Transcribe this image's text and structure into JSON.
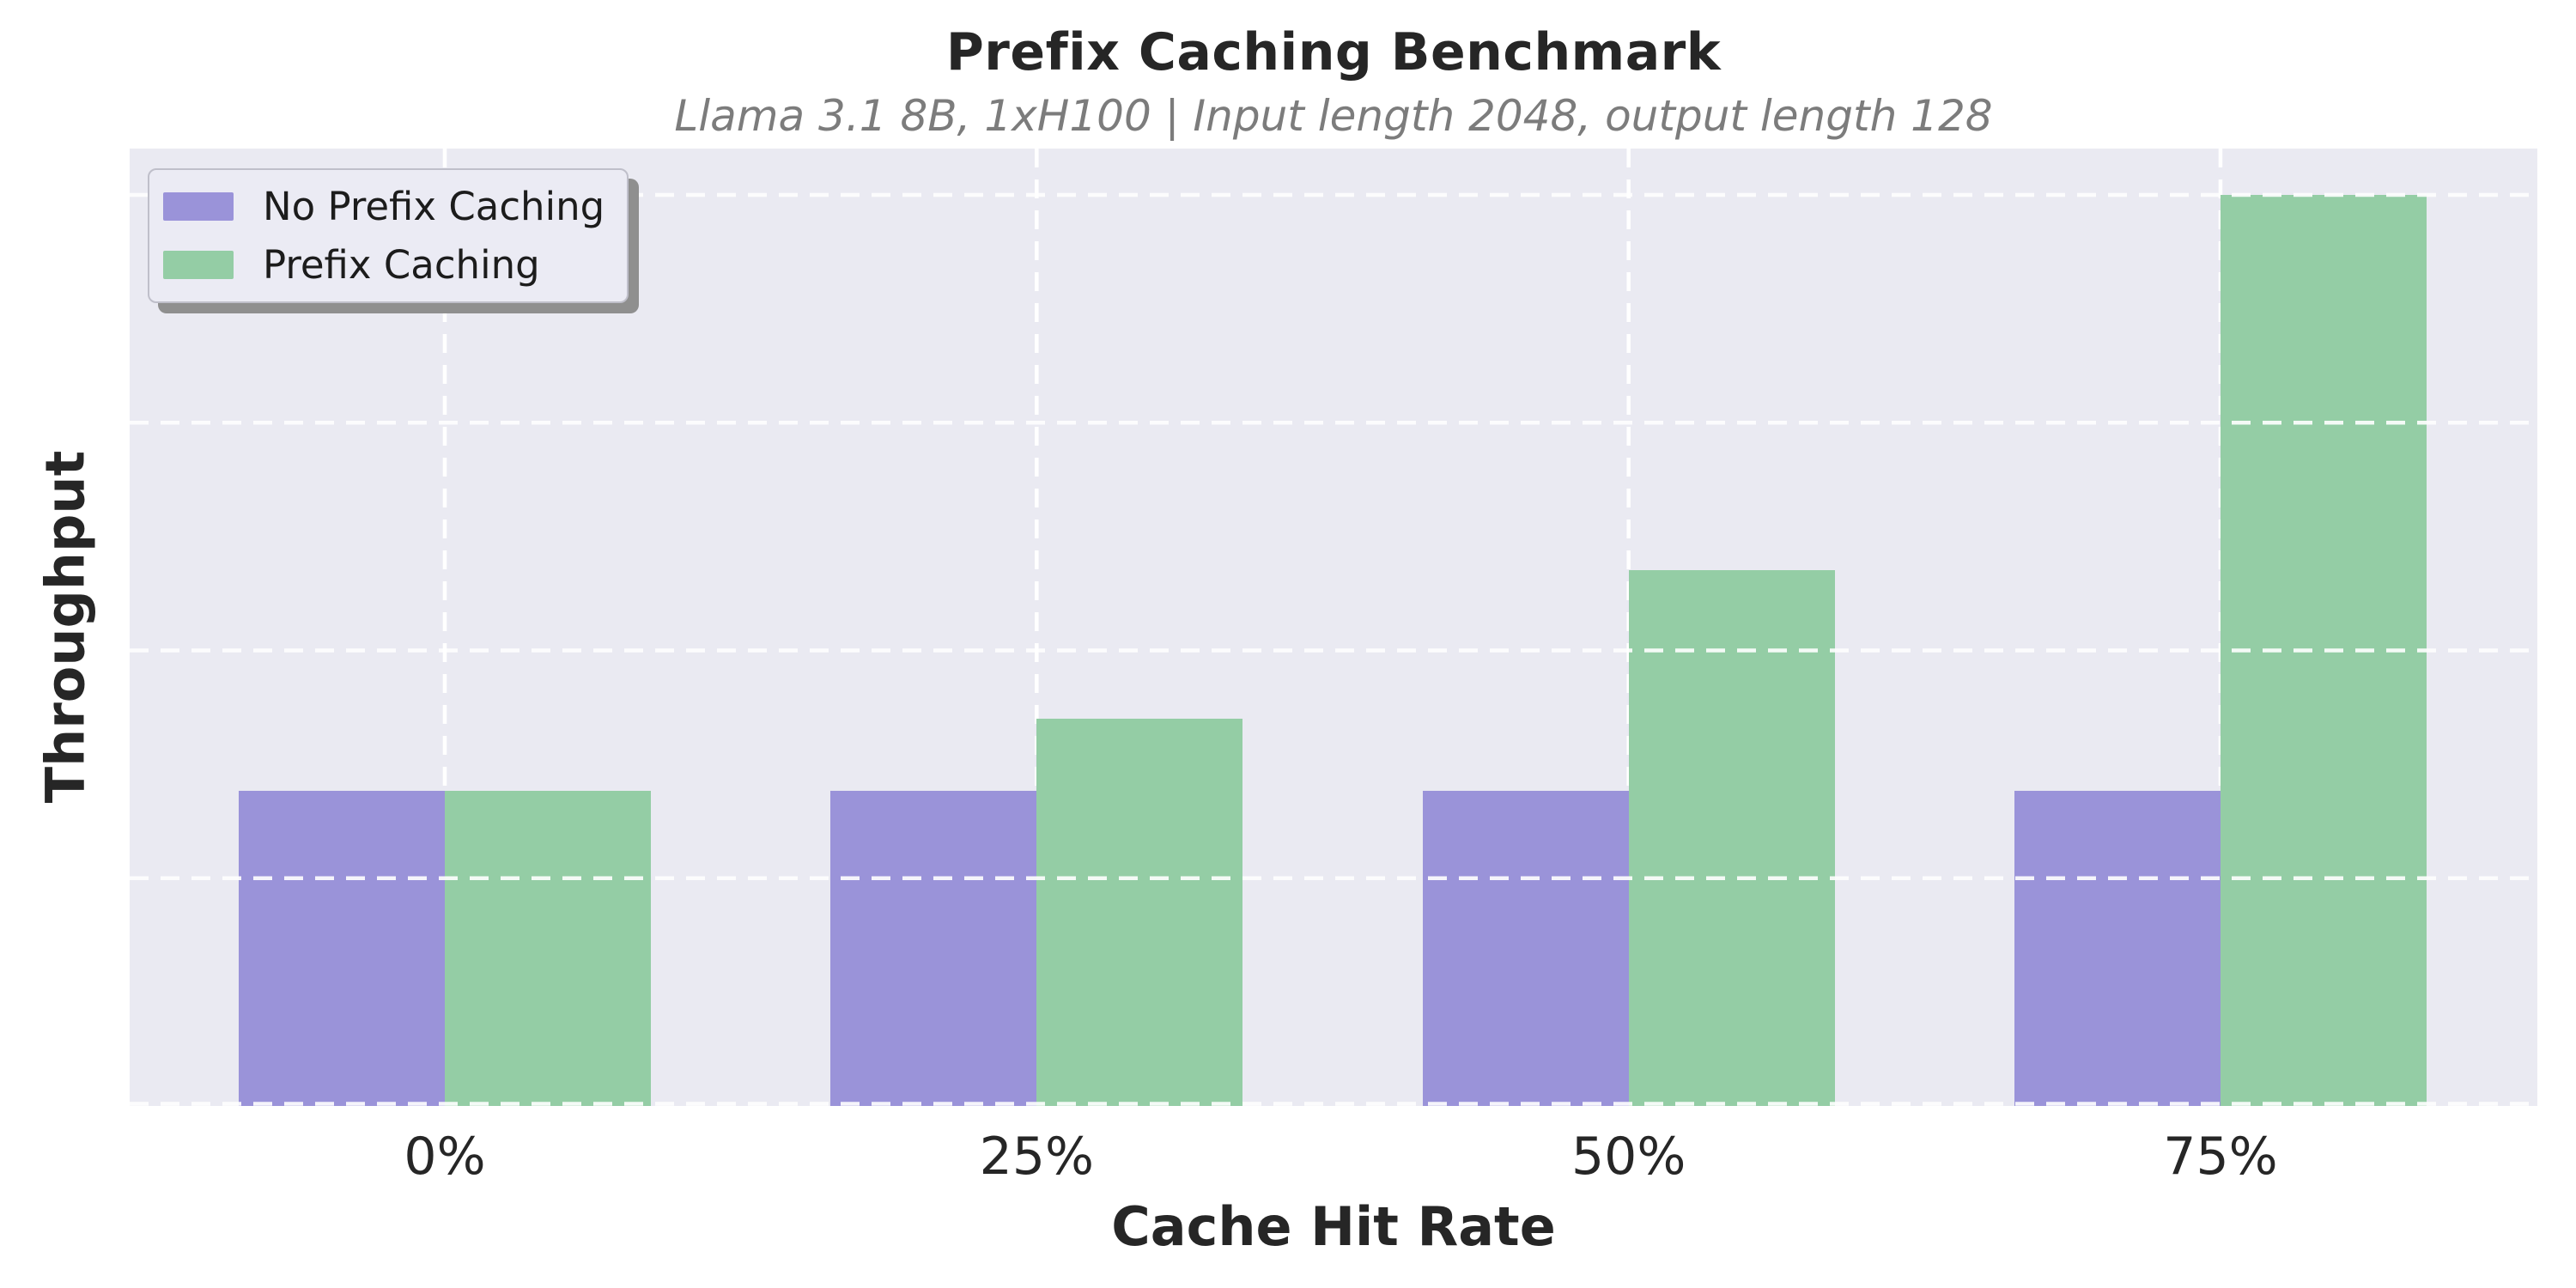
{
  "title": "Prefix Caching Benchmark",
  "subtitle": "Llama 3.1 8B, 1xH100 | Input length 2048, output length 128",
  "legend": {
    "items": [
      {
        "label": "No Prefix Caching",
        "color": "#9a93d9"
      },
      {
        "label": "Prefix Caching",
        "color": "#94cda5"
      }
    ],
    "position": "upper left"
  },
  "axes": {
    "xlabel": "Cache Hit Rate",
    "ylabel": "Throughput",
    "x_tick_labels": [
      "0%",
      "25%",
      "50%",
      "75%"
    ],
    "y_tick_labels": []
  },
  "chart_data": {
    "type": "bar",
    "title": "Prefix Caching Benchmark",
    "subtitle": "Llama 3.1 8B, 1xH100 | Input length 2048, output length 128",
    "xlabel": "Cache Hit Rate",
    "ylabel": "Throughput",
    "categories": [
      "0%",
      "25%",
      "50%",
      "75%"
    ],
    "series": [
      {
        "name": "No Prefix Caching",
        "color": "#9a93d9",
        "values": [
          1.0,
          1.0,
          1.0,
          1.0
        ]
      },
      {
        "name": "Prefix Caching",
        "color": "#94cda5",
        "values": [
          1.0,
          1.23,
          1.7,
          2.89
        ]
      }
    ],
    "value_unit": "throughput relative to no-caching baseline (y axis unlabeled)",
    "ylim": [
      0,
      3.04
    ],
    "grid": true,
    "grid_style": "white dashed on lavender background",
    "legend_position": "upper left",
    "legend_entries": [
      "No Prefix Caching",
      "Prefix Caching"
    ]
  },
  "colors": {
    "figure_background": "#ffffff",
    "plot_background": "#eaeaf2",
    "gridline": "#ffffff",
    "text": "#262626",
    "subtitle_text": "#7c7c7c",
    "series_no_prefix": "#9a93d9",
    "series_prefix": "#94cda5"
  }
}
